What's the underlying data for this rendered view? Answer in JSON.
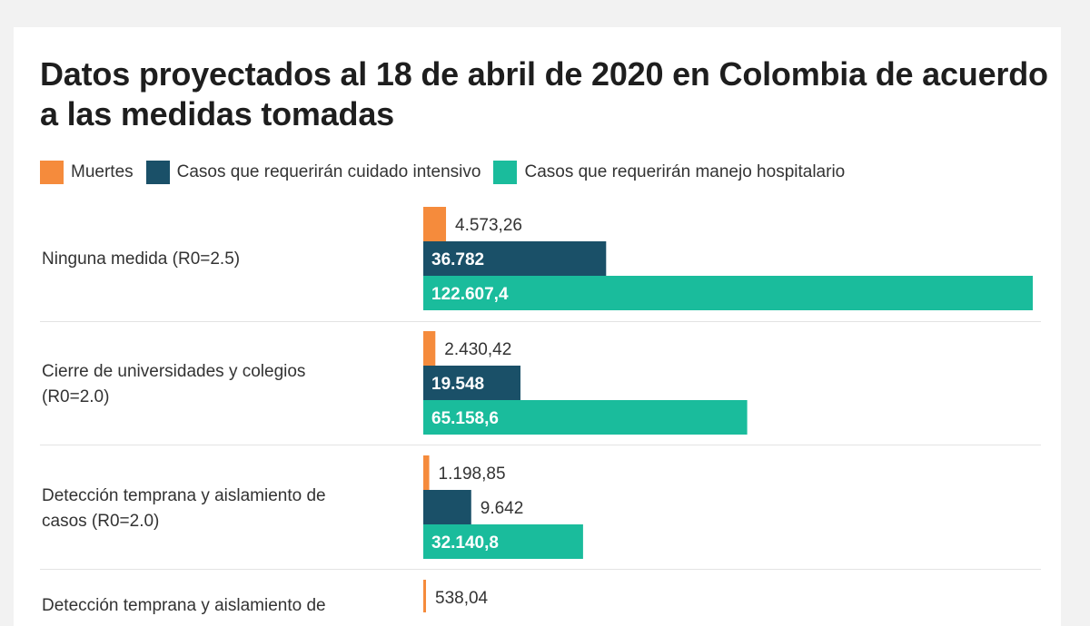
{
  "chart_data": {
    "type": "bar",
    "orientation": "horizontal",
    "title": "Datos proyectados al 18 de abril de 2020 en Colombia de acuerdo a las medidas tomadas",
    "xlabel": "",
    "ylabel": "",
    "xlim": [
      0,
      122607.4
    ],
    "grid": false,
    "legend_position": "top-left",
    "legend": [
      {
        "name": "Muertes",
        "color": "#f58b3c"
      },
      {
        "name": "Casos que requerirán cuidado intensivo",
        "color": "#1a5068"
      },
      {
        "name": "Casos que requerirán manejo hospitalario",
        "color": "#1abc9c"
      }
    ],
    "categories": [
      [
        "Ninguna medida (R0=2.5)"
      ],
      [
        "Cierre de universidades y colegios",
        "(R0=2.0)"
      ],
      [
        "Detección temprana y aislamiento de",
        "casos (R0=2.0)"
      ],
      [
        "Detección temprana y aislamiento de"
      ]
    ],
    "series": [
      {
        "name": "Muertes",
        "values": [
          4573.26,
          2430.42,
          1198.85,
          538.04
        ],
        "labels": [
          "4.573,26",
          "2.430,42",
          "1.198,85",
          "538,04"
        ]
      },
      {
        "name": "Casos que requerirán cuidado intensivo",
        "values": [
          36782,
          19548,
          9642,
          null
        ],
        "labels": [
          "36.782",
          "19.548",
          "9.642",
          ""
        ]
      },
      {
        "name": "Casos que requerirán manejo hospitalario",
        "values": [
          122607.4,
          65158.6,
          32140.8,
          null
        ],
        "labels": [
          "122.607,4",
          "65.158,6",
          "32.140,8",
          ""
        ]
      }
    ]
  }
}
